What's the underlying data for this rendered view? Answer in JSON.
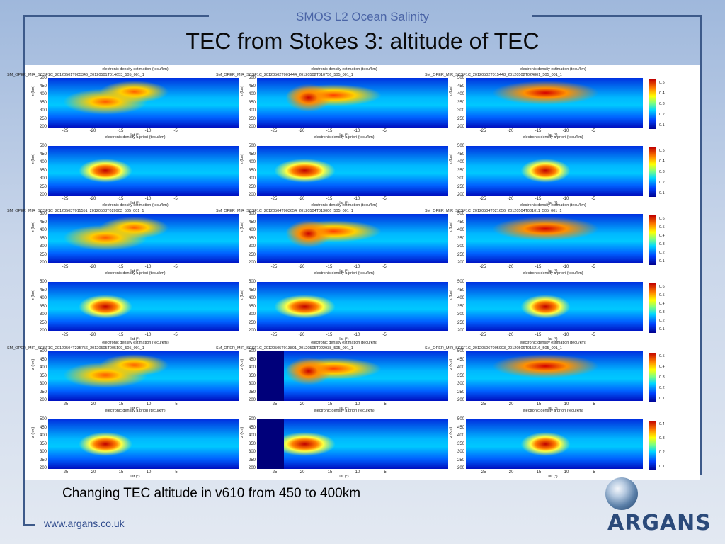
{
  "header_text": "SMOS L2 Ocean Salinity",
  "title": "TEC from Stokes 3: altitude of TEC",
  "caption": "Changing TEC altitude in v610 from 450 to 400km",
  "website": "www.argans.co.uk",
  "brand": "ARGANS",
  "figure": {
    "estimation_title": "electronic density estimation (tecu/km)",
    "apriori_title": "electronic density a priori (tecu/km)",
    "ylabel": "z (km)",
    "xlabel": "lat (°)",
    "y_ticks": [
      "500",
      "450",
      "400",
      "350",
      "300",
      "250",
      "200"
    ],
    "x_ticks": [
      "-25",
      "-20",
      "-15",
      "-10",
      "-5"
    ],
    "panels": [
      {
        "file": "SM_OPER_MIR_SCSF1C_20120501T005346_20120501T014653_505_001_1",
        "cbar": []
      },
      {
        "file": "SM_OPER_MIR_SCSF1C_20120502T001444_20120502T010756_505_001_1",
        "cbar": []
      },
      {
        "file": "SM_OPER_MIR_SCSF1C_20120502T015448_20120502T024801_505_001_1",
        "cbar": [
          "0.5",
          "0.4",
          "0.3",
          "0.2",
          "0.1"
        ]
      },
      {
        "file": "",
        "cbar": []
      },
      {
        "file": "",
        "cbar": []
      },
      {
        "file": "",
        "cbar": [
          "0.5",
          "0.4",
          "0.3",
          "0.2",
          "0.1"
        ]
      },
      {
        "file": "SM_OPER_MIR_SCSF1C_20120503T011551_20120503T020903_505_001_1",
        "cbar": []
      },
      {
        "file": "SM_OPER_MIR_SCSF1C_20120504T003654_20120504T013006_505_001_1",
        "cbar": []
      },
      {
        "file": "SM_OPER_MIR_SCSF1C_20120504T021656_20120504T031011_505_001_1",
        "cbar": [
          "0.6",
          "0.5",
          "0.4",
          "0.3",
          "0.2",
          "0.1"
        ]
      },
      {
        "file": "",
        "cbar": []
      },
      {
        "file": "",
        "cbar": []
      },
      {
        "file": "",
        "cbar": [
          "0.6",
          "0.5",
          "0.4",
          "0.3",
          "0.2",
          "0.1"
        ]
      },
      {
        "file": "SM_OPER_MIR_SCSF1C_20120504T235756_20120505T005109_505_001_1",
        "cbar": []
      },
      {
        "file": "SM_OPER_MIR_SCSF1C_20120505T013801_20120505T022938_505_001_1",
        "cbar": []
      },
      {
        "file": "SM_OPER_MIR_SCSF1C_20120506T005903_20120506T015216_505_001_1",
        "cbar": [
          "0.5",
          "0.4",
          "0.3",
          "0.2",
          "0.1"
        ]
      },
      {
        "file": "",
        "cbar": []
      },
      {
        "file": "",
        "cbar": []
      },
      {
        "file": "",
        "cbar": [
          "0.4",
          "0.3",
          "0.2",
          "0.1"
        ]
      }
    ]
  },
  "colors": {
    "header": "#4a64a6",
    "frame": "#3d5a8a",
    "website": "#2e4a8c",
    "brand": "#2b4a7a"
  }
}
